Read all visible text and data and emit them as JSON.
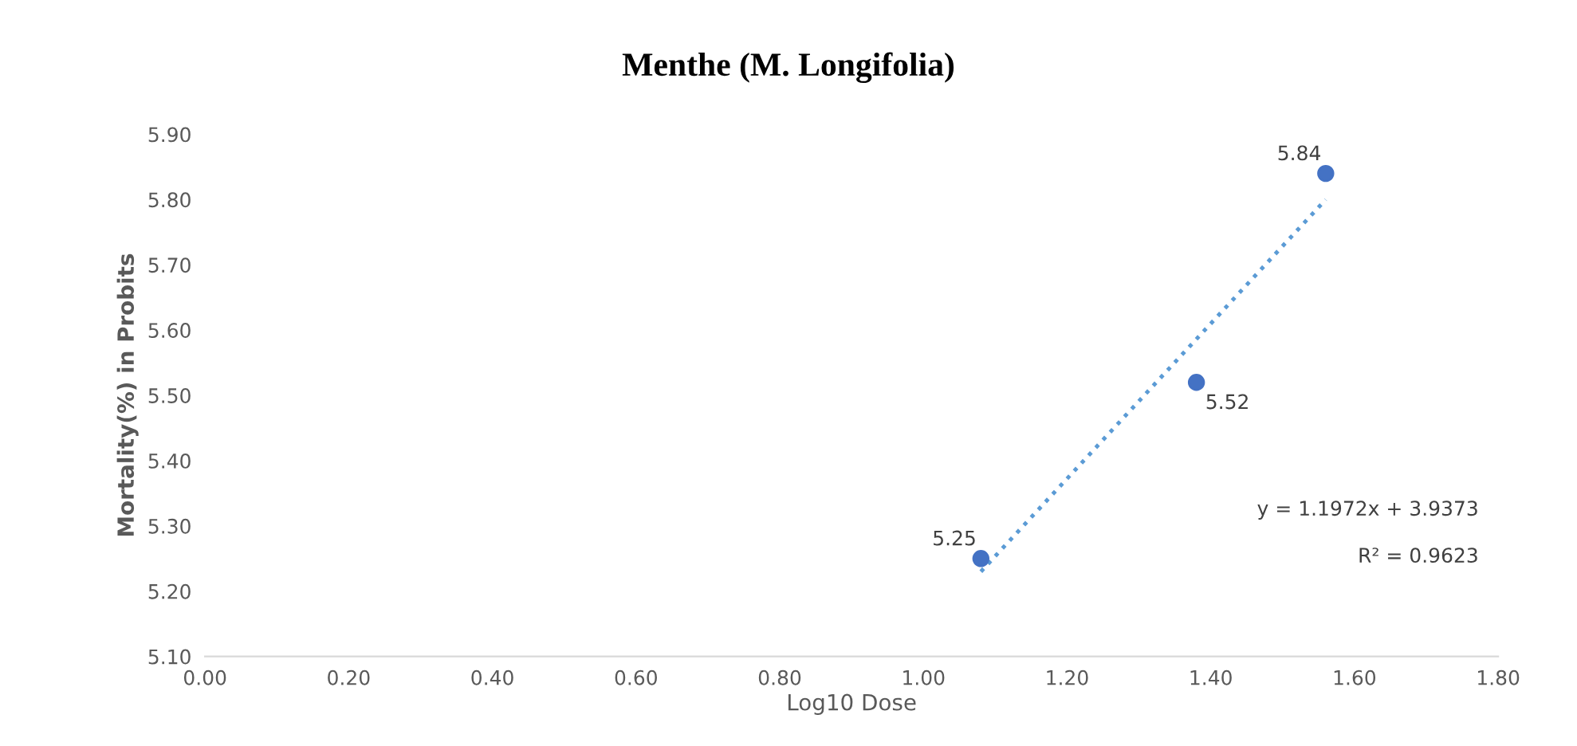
{
  "chart_data": {
    "type": "scatter",
    "title": "Menthe (M. Longifolia)",
    "xlabel": "Log10 Dose",
    "ylabel": "Mortality(%) in Probits",
    "series": [
      {
        "color": "#4472c4",
        "x": [
          1.08,
          1.38,
          1.56
        ],
        "values": [
          5.25,
          5.52,
          5.84
        ],
        "value_labels": [
          "5.25",
          "5.52",
          "5.84"
        ]
      },
      {
        "type": "line",
        "marker": "none",
        "color": "#5b9bd5",
        "line_style": "dotted",
        "x": [
          1.08,
          1.56
        ],
        "values": [
          5.23,
          5.8
        ]
      }
    ],
    "annotations": [
      "y = 1.1972x + 3.9373",
      "R² = 0.9623"
    ],
    "xlim": [
      0,
      1.8
    ],
    "xticks": [
      {
        "value": 0,
        "label": "0.00"
      },
      {
        "value": 0.2,
        "label": "0.20"
      },
      {
        "value": 0.4,
        "label": "0.40"
      },
      {
        "value": 0.6,
        "label": "0.60"
      },
      {
        "value": 0.8,
        "label": "0.80"
      },
      {
        "value": 1,
        "label": "1.00"
      },
      {
        "value": 1.2,
        "label": "1.20"
      },
      {
        "value": 1.4,
        "label": "1.40"
      },
      {
        "value": 1.6,
        "label": "1.60"
      },
      {
        "value": 1.8,
        "label": "1.80"
      }
    ],
    "ylim": [
      5.1,
      5.9
    ],
    "yticks": [
      {
        "value": 5.1,
        "label": "5.10"
      },
      {
        "value": 5.2,
        "label": "5.20"
      },
      {
        "value": 5.3,
        "label": "5.30"
      },
      {
        "value": 5.4,
        "label": "5.40"
      },
      {
        "value": 5.5,
        "label": "5.50"
      },
      {
        "value": 5.6,
        "label": "5.60"
      },
      {
        "value": 5.7,
        "label": "5.70"
      },
      {
        "value": 5.8,
        "label": "5.80"
      },
      {
        "value": 5.9,
        "label": "5.90"
      }
    ],
    "grid": false,
    "legend": false,
    "marker": "circle"
  }
}
